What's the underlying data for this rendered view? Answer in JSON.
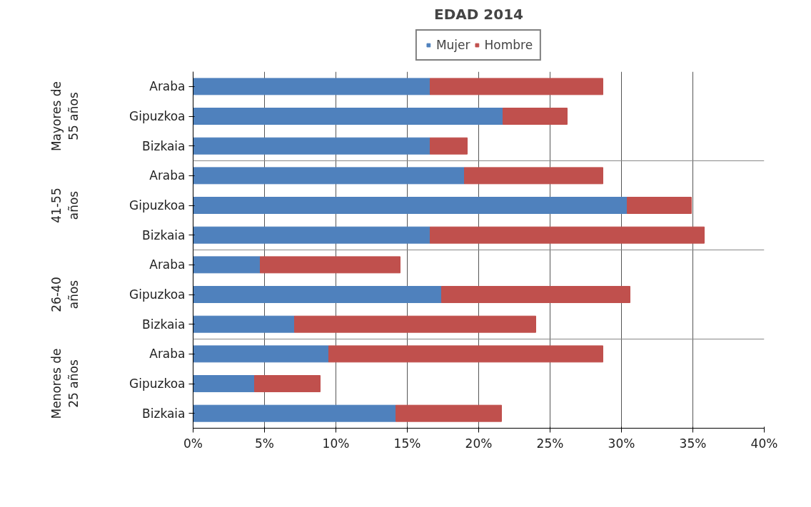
{
  "chart_data": {
    "type": "bar",
    "orientation": "horizontal",
    "stacked": true,
    "title": "EDAD 2014",
    "categories": [
      "Araba",
      "Gipuzkoa",
      "Bizkaia",
      "Araba",
      "Gipuzkoa",
      "Bizkaia",
      "Araba",
      "Gipuzkoa",
      "Bizkaia",
      "Araba",
      "Gipuzkoa",
      "Bizkaia"
    ],
    "series": [
      {
        "name": "Mujer",
        "color": "#4f81bd",
        "values": [
          16.6,
          21.7,
          16.6,
          19.0,
          30.4,
          16.6,
          4.7,
          17.4,
          7.1,
          9.5,
          4.3,
          14.2
        ]
      },
      {
        "name": "Hombre",
        "color": "#c0504d",
        "values": [
          12.1,
          4.5,
          2.6,
          9.7,
          4.5,
          19.2,
          9.8,
          13.2,
          16.9,
          19.2,
          4.6,
          7.4
        ]
      }
    ],
    "annotations": [
      "Mayores de 55 años",
      "41-55 años",
      "26-40 años",
      "Menores de 25 años"
    ],
    "xlim": [
      0,
      40
    ],
    "xticks": [
      {
        "value": 0,
        "label": "0%"
      },
      {
        "value": 5,
        "label": "5%"
      },
      {
        "value": 10,
        "label": "10%"
      },
      {
        "value": 15,
        "label": "15%"
      },
      {
        "value": 20,
        "label": "20%"
      },
      {
        "value": 25,
        "label": "25%"
      },
      {
        "value": 30,
        "label": "30%"
      },
      {
        "value": 35,
        "label": "35%"
      },
      {
        "value": 40,
        "label": "40%"
      }
    ],
    "grid": "x",
    "legend": "top"
  }
}
